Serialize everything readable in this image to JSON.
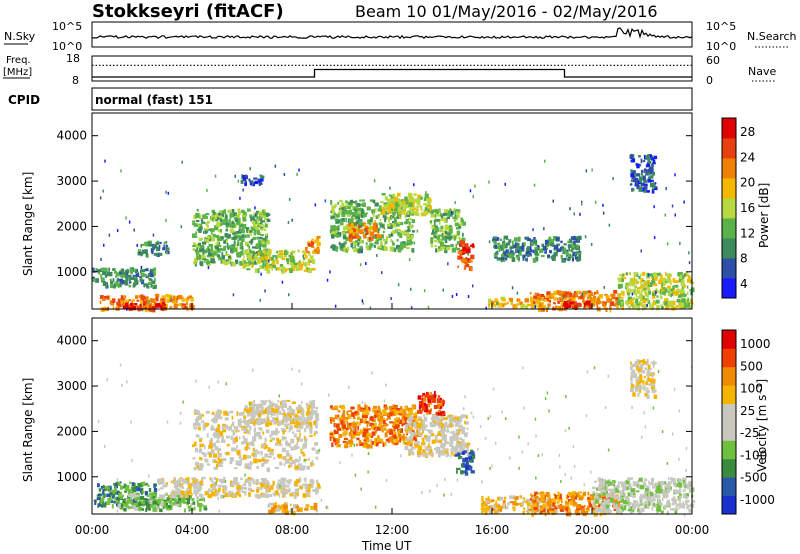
{
  "header": {
    "station": "Stokkseyri (fitACF)",
    "beam_date": "Beam 10 01/May/2016 - 02/May/2016"
  },
  "top_panels": {
    "nsky_label": "N.Sky",
    "nsky_ticks": [
      "10^5",
      "10^0"
    ],
    "nsearch_label": "N.Search",
    "nsearch_ticks": [
      "10^5",
      "10^0"
    ],
    "freq_label": "Freq.",
    "freq_unit": "[MHz]",
    "freq_ticks": [
      "18",
      "8"
    ],
    "nave_label": "Nave",
    "nave_ticks": [
      "60",
      "0"
    ],
    "cpid_label": "CPID",
    "cpid_value": "normal (fast) 151"
  },
  "colors": {
    "power": [
      "#1a1aff",
      "#2d4fa8",
      "#3c8a5e",
      "#5ab24a",
      "#b8d840",
      "#f5b800",
      "#f08000",
      "#e84010",
      "#e00000"
    ],
    "velocity": [
      "#e00000",
      "#f04000",
      "#f08a00",
      "#f5b400",
      "#c8c8c0",
      "#c8c8c0",
      "#70c040",
      "#3a8a40",
      "#2a58a8",
      "#1a30d0"
    ]
  },
  "chart_data": [
    {
      "type": "heatmap",
      "name": "power",
      "ylabel": "Slant Range [km]",
      "ylim": [
        180,
        4500
      ],
      "yticks": [
        "4000",
        "3000",
        "2000",
        "1000"
      ],
      "colorbar_label": "Power [dB]",
      "colorbar_ticks": [
        "28",
        "24",
        "20",
        "16",
        "12",
        "8",
        "4"
      ],
      "x_unit": "hours UT",
      "patches": [
        {
          "x": [
            0.3,
            4.0
          ],
          "y": [
            200,
            520
          ],
          "level": 6
        },
        {
          "x": [
            1.2,
            3.0
          ],
          "y": [
            200,
            330
          ],
          "level": 8
        },
        {
          "x": [
            0.0,
            2.5
          ],
          "y": [
            700,
            1100
          ],
          "level": 2
        },
        {
          "x": [
            1.8,
            3.0
          ],
          "y": [
            1400,
            1700
          ],
          "level": 2
        },
        {
          "x": [
            4.0,
            7.0
          ],
          "y": [
            1200,
            2400
          ],
          "level": 3
        },
        {
          "x": [
            6.0,
            8.8
          ],
          "y": [
            1050,
            1500
          ],
          "level": 4
        },
        {
          "x": [
            5.8,
            6.8
          ],
          "y": [
            2950,
            3150
          ],
          "level": 1
        },
        {
          "x": [
            8.5,
            9.0
          ],
          "y": [
            1450,
            1800
          ],
          "level": 6
        },
        {
          "x": [
            9.5,
            12.8
          ],
          "y": [
            1500,
            2600
          ],
          "level": 3
        },
        {
          "x": [
            10.2,
            11.5
          ],
          "y": [
            1750,
            2100
          ],
          "level": 6
        },
        {
          "x": [
            11.5,
            13.5
          ],
          "y": [
            2300,
            2750
          ],
          "level": 4
        },
        {
          "x": [
            13.5,
            14.8
          ],
          "y": [
            1500,
            2400
          ],
          "level": 3
        },
        {
          "x": [
            14.6,
            15.2
          ],
          "y": [
            1100,
            1700
          ],
          "level": 7
        },
        {
          "x": [
            15.8,
            18.0
          ],
          "y": [
            250,
            480
          ],
          "level": 5
        },
        {
          "x": [
            17.5,
            21.0
          ],
          "y": [
            200,
            600
          ],
          "level": 6
        },
        {
          "x": [
            18.8,
            20.0
          ],
          "y": [
            220,
            380
          ],
          "level": 8
        },
        {
          "x": [
            21.0,
            24.0
          ],
          "y": [
            230,
            1000
          ],
          "level": 4
        },
        {
          "x": [
            16.0,
            19.5
          ],
          "y": [
            1300,
            1800
          ],
          "level": 2
        },
        {
          "x": [
            21.5,
            22.5
          ],
          "y": [
            2800,
            3600
          ],
          "level": 1
        }
      ]
    },
    {
      "type": "heatmap",
      "name": "velocity",
      "ylabel": "Slant Range [km]",
      "ylim": [
        180,
        4500
      ],
      "yticks": [
        "4000",
        "3000",
        "2000",
        "1000"
      ],
      "xlabel": "Time UT",
      "xticks": [
        "00:00",
        "04:00",
        "08:00",
        "12:00",
        "16:00",
        "20:00",
        "00:00"
      ],
      "colorbar_label": "Velocity [m s⁻¹]",
      "colorbar_ticks": [
        "1000",
        "500",
        "100",
        "25",
        "-25",
        "-100",
        "-500",
        "-1000"
      ],
      "patches": [
        {
          "x": [
            0.0,
            2.5
          ],
          "y": [
            400,
            900
          ],
          "level": 7
        },
        {
          "x": [
            1.0,
            4.5
          ],
          "y": [
            300,
            650
          ],
          "level": 6
        },
        {
          "x": [
            2.5,
            9.0
          ],
          "y": [
            600,
            1000
          ],
          "level": 4
        },
        {
          "x": [
            4.0,
            9.0
          ],
          "y": [
            1200,
            2500
          ],
          "level": 4
        },
        {
          "x": [
            6.0,
            9.0
          ],
          "y": [
            2200,
            2700
          ],
          "level": 4
        },
        {
          "x": [
            7.0,
            9.0
          ],
          "y": [
            250,
            450
          ],
          "level": 3
        },
        {
          "x": [
            9.5,
            13.0
          ],
          "y": [
            1700,
            2600
          ],
          "level": 2
        },
        {
          "x": [
            12.5,
            15.0
          ],
          "y": [
            1500,
            2400
          ],
          "level": 4
        },
        {
          "x": [
            14.5,
            15.2
          ],
          "y": [
            1100,
            1600
          ],
          "level": 8
        },
        {
          "x": [
            15.5,
            18.5
          ],
          "y": [
            250,
            600
          ],
          "level": 3
        },
        {
          "x": [
            17.5,
            21.0
          ],
          "y": [
            200,
            700
          ],
          "level": 2
        },
        {
          "x": [
            20.0,
            24.0
          ],
          "y": [
            250,
            1000
          ],
          "level": 5
        },
        {
          "x": [
            21.5,
            22.5
          ],
          "y": [
            2800,
            3600
          ],
          "level": 4
        },
        {
          "x": [
            13.0,
            14.0
          ],
          "y": [
            2400,
            2900
          ],
          "level": 1
        }
      ]
    },
    {
      "type": "line",
      "name": "frequency",
      "x": [
        0,
        8.9,
        8.9,
        18.9,
        18.9,
        24
      ],
      "y": [
        8,
        8,
        11,
        11,
        8,
        8
      ],
      "ylim": [
        8,
        18
      ]
    },
    {
      "type": "line",
      "name": "nave",
      "x": [
        0,
        24
      ],
      "y": [
        45,
        45
      ],
      "ylim": [
        0,
        60
      ]
    }
  ]
}
